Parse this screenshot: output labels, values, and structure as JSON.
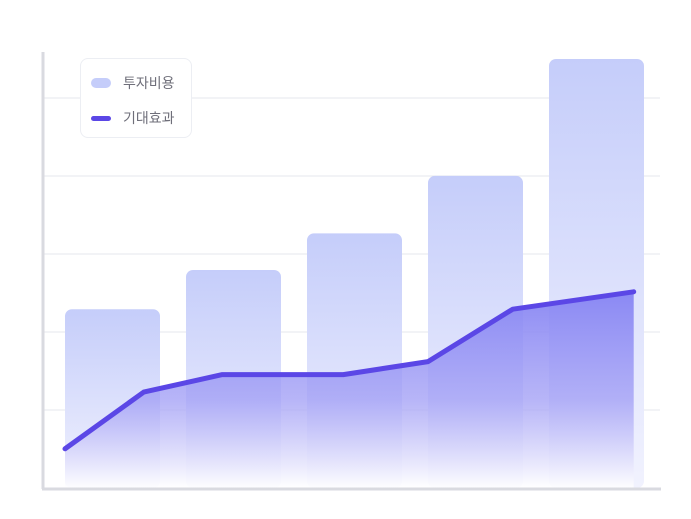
{
  "chart_data": {
    "type": "bar+area-line",
    "categories": [
      "",
      "",
      "",
      "",
      ""
    ],
    "series": [
      {
        "name": "투자비용",
        "type": "bar",
        "values": [
          2.05,
          2.5,
          2.92,
          3.58,
          4.92
        ]
      },
      {
        "name": "기대효과",
        "type": "area-line",
        "x": [
          0,
          0.65,
          1.3,
          2.3,
          3.0,
          3.7,
          4.7
        ],
        "values": [
          0.45,
          1.1,
          1.3,
          1.3,
          1.45,
          2.05,
          2.25
        ]
      }
    ],
    "ylim": [
      0,
      5.0
    ],
    "grid": true,
    "legend": "top-left",
    "colors": {
      "bar_top": "#c5cdfa",
      "bar_bottom": "#eef0fd",
      "line": "#5b47e6",
      "area_top": "#8a88f3",
      "axis": "#d9dae0",
      "grid": "#e6e7ec"
    }
  }
}
